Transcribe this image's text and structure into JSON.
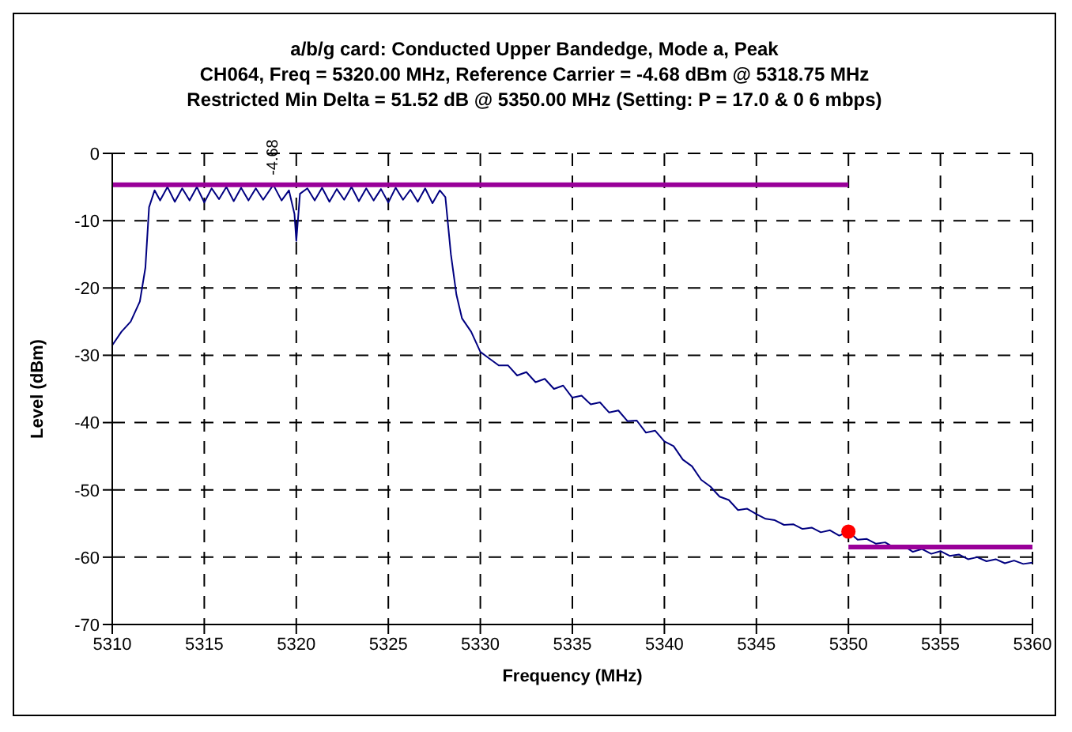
{
  "chart_data": {
    "type": "line",
    "title": "a/b/g card: Conducted Upper Bandedge, Mode a, Peak",
    "subtitle": "CH064, Freq = 5320.00 MHz, Reference Carrier = -4.68 dBm @ 5318.75 MHz\nRestricted Min Delta = 51.52 dB @ 5350.00 MHz  (Setting: P = 17.0 & 0 6 mbps)",
    "xlabel": "Frequency (MHz)",
    "ylabel": "Level (dBm)",
    "xlim": [
      5310,
      5360
    ],
    "xticks": [
      5310,
      5315,
      5320,
      5325,
      5330,
      5335,
      5340,
      5345,
      5350,
      5355,
      5360
    ],
    "ylim": [
      -70,
      0
    ],
    "yticks": [
      -70,
      -60,
      -50,
      -40,
      -30,
      -20,
      -10,
      0
    ],
    "grid": true,
    "legend": false,
    "line_style": "solid",
    "marker": "none",
    "annotations": [
      {
        "text": "-4.68",
        "x": 5318.75,
        "y": -4.68
      }
    ],
    "series": [
      {
        "color": "#000080",
        "x": [
          5310,
          5310.5,
          5311,
          5311.5,
          5311.8,
          5312,
          5312.3,
          5312.6,
          5313,
          5313.4,
          5313.8,
          5314.2,
          5314.6,
          5315,
          5315.4,
          5315.8,
          5316.2,
          5316.6,
          5317,
          5317.4,
          5317.8,
          5318.2,
          5318.75,
          5319.2,
          5319.6,
          5319.9,
          5320,
          5320.2,
          5320.6,
          5321,
          5321.4,
          5321.8,
          5322.2,
          5322.6,
          5323,
          5323.4,
          5323.8,
          5324.2,
          5324.6,
          5325,
          5325.4,
          5325.8,
          5326.2,
          5326.6,
          5327,
          5327.4,
          5327.8,
          5328.1,
          5328.4,
          5328.7,
          5329,
          5329.5,
          5330,
          5330.5,
          5331,
          5331.5,
          5332,
          5332.5,
          5333,
          5333.5,
          5334,
          5334.5,
          5335,
          5335.5,
          5336,
          5336.5,
          5337,
          5337.5,
          5338,
          5338.5,
          5339,
          5339.5,
          5340,
          5340.5,
          5341,
          5341.5,
          5342,
          5342.5,
          5343,
          5343.5,
          5344,
          5344.5,
          5345,
          5345.5,
          5346,
          5346.5,
          5347,
          5347.5,
          5348,
          5348.5,
          5349,
          5349.5,
          5350,
          5350.5,
          5351,
          5351.5,
          5352,
          5352.5,
          5353,
          5353.5,
          5354,
          5354.5,
          5355,
          5355.5,
          5356,
          5356.5,
          5357,
          5357.5,
          5358,
          5358.5,
          5359,
          5359.5,
          5360
        ],
        "values": [
          -28.5,
          -26.5,
          -25,
          -22,
          -17,
          -8,
          -5.5,
          -7,
          -5,
          -7.2,
          -5.2,
          -7,
          -5,
          -7.3,
          -5.2,
          -6.8,
          -5,
          -7.1,
          -5.1,
          -7,
          -5.2,
          -6.9,
          -4.68,
          -7,
          -5.5,
          -9,
          -13,
          -6,
          -5.2,
          -7,
          -5.1,
          -7.2,
          -5.3,
          -6.9,
          -5,
          -7.1,
          -5.2,
          -7,
          -5.3,
          -7.3,
          -5.1,
          -6.9,
          -5.4,
          -7.2,
          -5.2,
          -7.4,
          -5.5,
          -6.5,
          -15,
          -21,
          -24.5,
          -26.5,
          -29.5,
          -30.5,
          -31.5,
          -31.5,
          -33,
          -32.5,
          -34,
          -33.5,
          -35,
          -34.5,
          -36.3,
          -36,
          -37.3,
          -37,
          -38.5,
          -38.2,
          -39.8,
          -39.7,
          -41.5,
          -41.2,
          -42.8,
          -43.5,
          -45.5,
          -46.5,
          -48.5,
          -49.5,
          -51,
          -51.5,
          -53,
          -52.8,
          -53.6,
          -54.3,
          -54.5,
          -55.2,
          -55.1,
          -55.8,
          -55.6,
          -56.3,
          -56,
          -56.8,
          -56.2,
          -57.4,
          -57.3,
          -58,
          -57.8,
          -58.6,
          -58.3,
          -59.2,
          -58.8,
          -59.5,
          -59.1,
          -59.8,
          -59.6,
          -60.3,
          -60,
          -60.6,
          -60.3,
          -60.9,
          -60.5,
          -61,
          -60.8
        ]
      },
      {
        "color": "#990099",
        "x": [
          5310,
          5350
        ],
        "values": [
          -4.68,
          -4.68
        ]
      },
      {
        "color": "#990099",
        "x": [
          5350,
          5360
        ],
        "values": [
          -58.5,
          -58.5
        ]
      },
      {
        "type": "scatter",
        "marker": "circle",
        "color": "#ff0000",
        "x": [
          5350
        ],
        "values": [
          -56.2
        ]
      }
    ]
  }
}
